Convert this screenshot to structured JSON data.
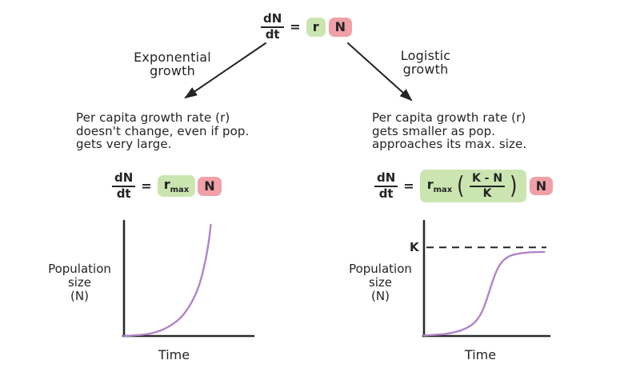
{
  "colors": {
    "ink": "#242424",
    "highlight_green": "#cbe5b1",
    "highlight_red": "#f0a0a6",
    "curve_purple": "#b184c8"
  },
  "top_equation": {
    "numerator": "dN",
    "denominator": "dt",
    "equals": "=",
    "rate_term": "r",
    "population_term": "N"
  },
  "branches": {
    "left": {
      "label_line1": "Exponential",
      "label_line2": "growth",
      "description": [
        "Per capita growth rate (r)",
        "doesn't change, even if pop.",
        "gets very large."
      ],
      "equation": {
        "numerator": "dN",
        "denominator": "dt",
        "equals": "=",
        "rate_base": "r",
        "rate_sub": "max",
        "population_term": "N"
      }
    },
    "right": {
      "label_line1": "Logistic",
      "label_line2": "growth",
      "description": [
        "Per capita growth rate (r)",
        "gets smaller as pop.",
        "approaches its max. size."
      ],
      "equation": {
        "numerator": "dN",
        "denominator": "dt",
        "equals": "=",
        "rate_base": "r",
        "rate_sub": "max",
        "paren_open": "(",
        "inner_numerator": "K - N",
        "inner_denominator": "K",
        "paren_close": ")",
        "population_term": "N"
      }
    }
  },
  "chart_data": [
    {
      "type": "line",
      "name": "Exponential growth curve",
      "xlabel": "Time",
      "ylabel": "Population size (N)",
      "ylabel_lines": [
        "Population",
        "size",
        "(N)"
      ],
      "x_range": [
        0,
        1
      ],
      "y_range": [
        0,
        1
      ],
      "grid": false,
      "curve_color": "#b184c8",
      "points": [
        [
          0,
          0
        ],
        [
          0.1,
          0.006
        ],
        [
          0.2,
          0.02
        ],
        [
          0.28,
          0.045
        ],
        [
          0.36,
          0.09
        ],
        [
          0.44,
          0.16
        ],
        [
          0.5,
          0.25
        ],
        [
          0.56,
          0.38
        ],
        [
          0.6,
          0.52
        ],
        [
          0.63,
          0.67
        ],
        [
          0.655,
          0.83
        ],
        [
          0.67,
          0.98
        ]
      ]
    },
    {
      "type": "line",
      "name": "Logistic growth curve",
      "xlabel": "Time",
      "ylabel": "Population size (N)",
      "ylabel_lines": [
        "Population",
        "size",
        "(N)"
      ],
      "x_range": [
        0,
        1
      ],
      "y_range": [
        0,
        1
      ],
      "grid": false,
      "curve_color": "#b184c8",
      "carrying_capacity_label": "K",
      "carrying_capacity_y": 0.78,
      "points": [
        [
          0,
          0.005
        ],
        [
          0.12,
          0.012
        ],
        [
          0.22,
          0.025
        ],
        [
          0.32,
          0.055
        ],
        [
          0.4,
          0.105
        ],
        [
          0.46,
          0.19
        ],
        [
          0.5,
          0.3
        ],
        [
          0.54,
          0.44
        ],
        [
          0.58,
          0.565
        ],
        [
          0.62,
          0.645
        ],
        [
          0.67,
          0.695
        ],
        [
          0.73,
          0.72
        ],
        [
          0.8,
          0.732
        ],
        [
          0.88,
          0.738
        ],
        [
          0.97,
          0.74
        ]
      ]
    }
  ]
}
